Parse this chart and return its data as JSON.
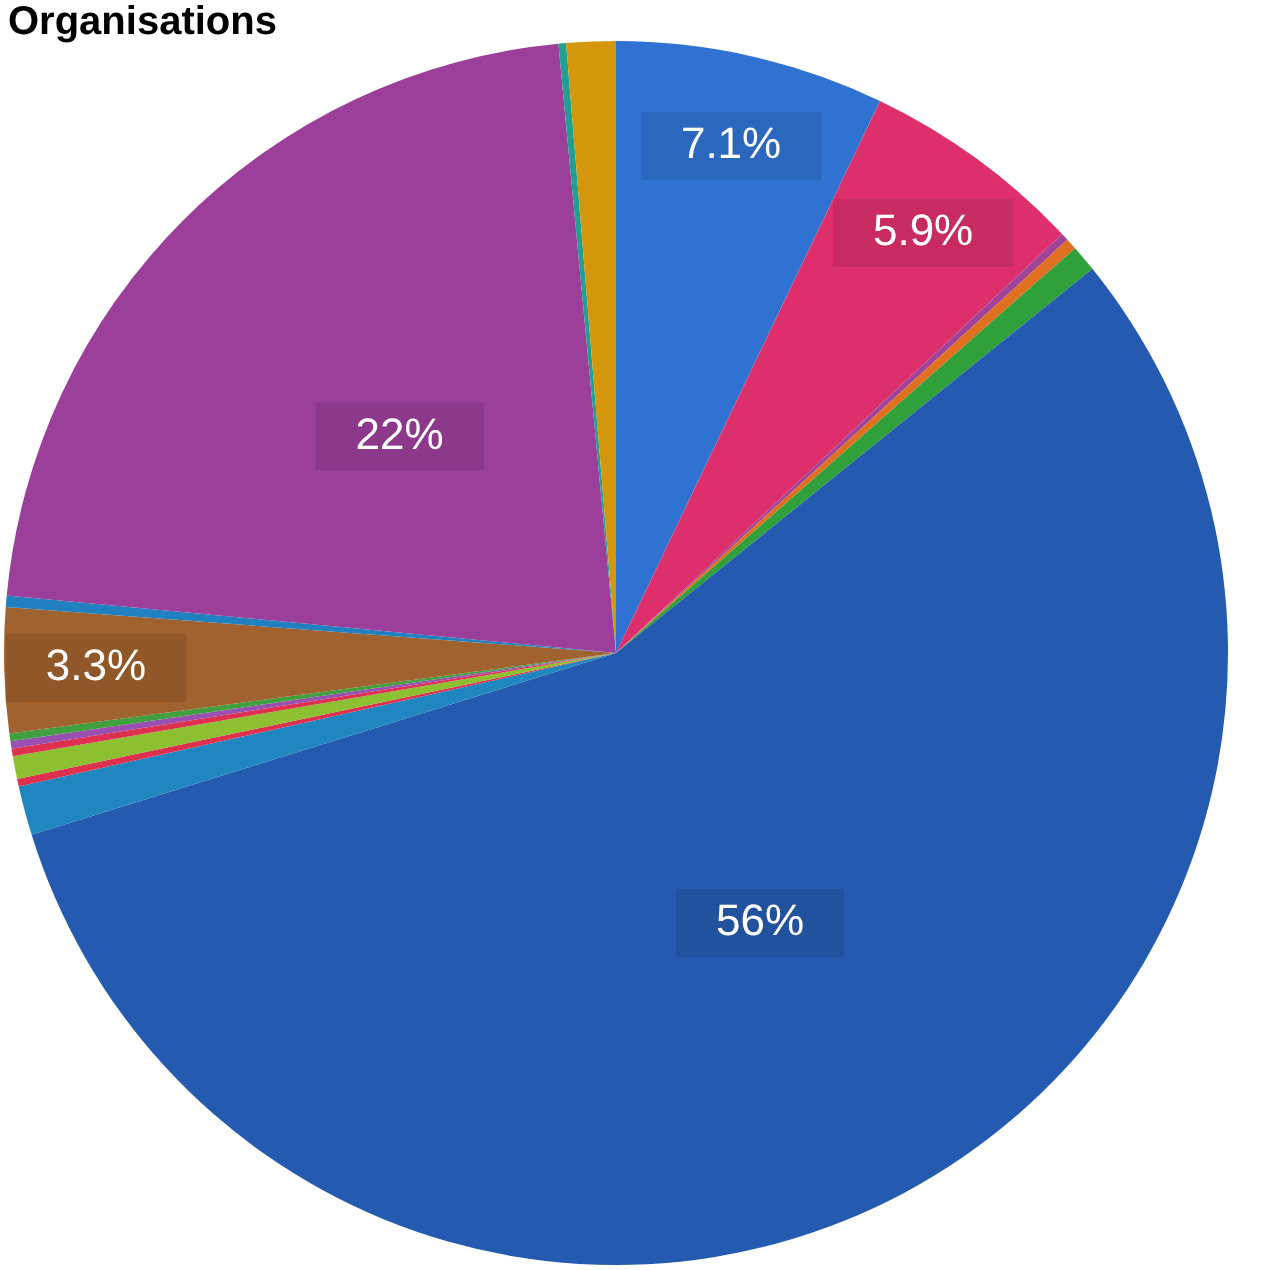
{
  "chart_data": {
    "type": "pie",
    "title": "Organisations",
    "categories": [
      null,
      null,
      null,
      null,
      null,
      null,
      null,
      null,
      null,
      null,
      null,
      null,
      null,
      null,
      null,
      null,
      null
    ],
    "values": [
      7.1,
      5.9,
      0.2,
      0.3,
      0.7,
      56,
      1.3,
      0.2,
      0.6,
      0.2,
      0.2,
      0.2,
      3.3,
      0.3,
      22,
      0.2,
      1.3
    ],
    "colors": [
      "#2f72d2",
      "#de2f6d",
      "#a0449a",
      "#e07020",
      "#2fa03a",
      "#245bb0",
      "#1f86c0",
      "#e03050",
      "#8cc030",
      "#e03050",
      "#9950b0",
      "#40a040",
      "#a0622e",
      "#2080c0",
      "#9c3f9a",
      "#20a090",
      "#d4960a"
    ],
    "value_labels": [
      "7.1%",
      "5.9%",
      null,
      null,
      null,
      "56%",
      null,
      null,
      null,
      null,
      null,
      null,
      "3.3%",
      null,
      "22%",
      null,
      null
    ],
    "legend": false
  }
}
